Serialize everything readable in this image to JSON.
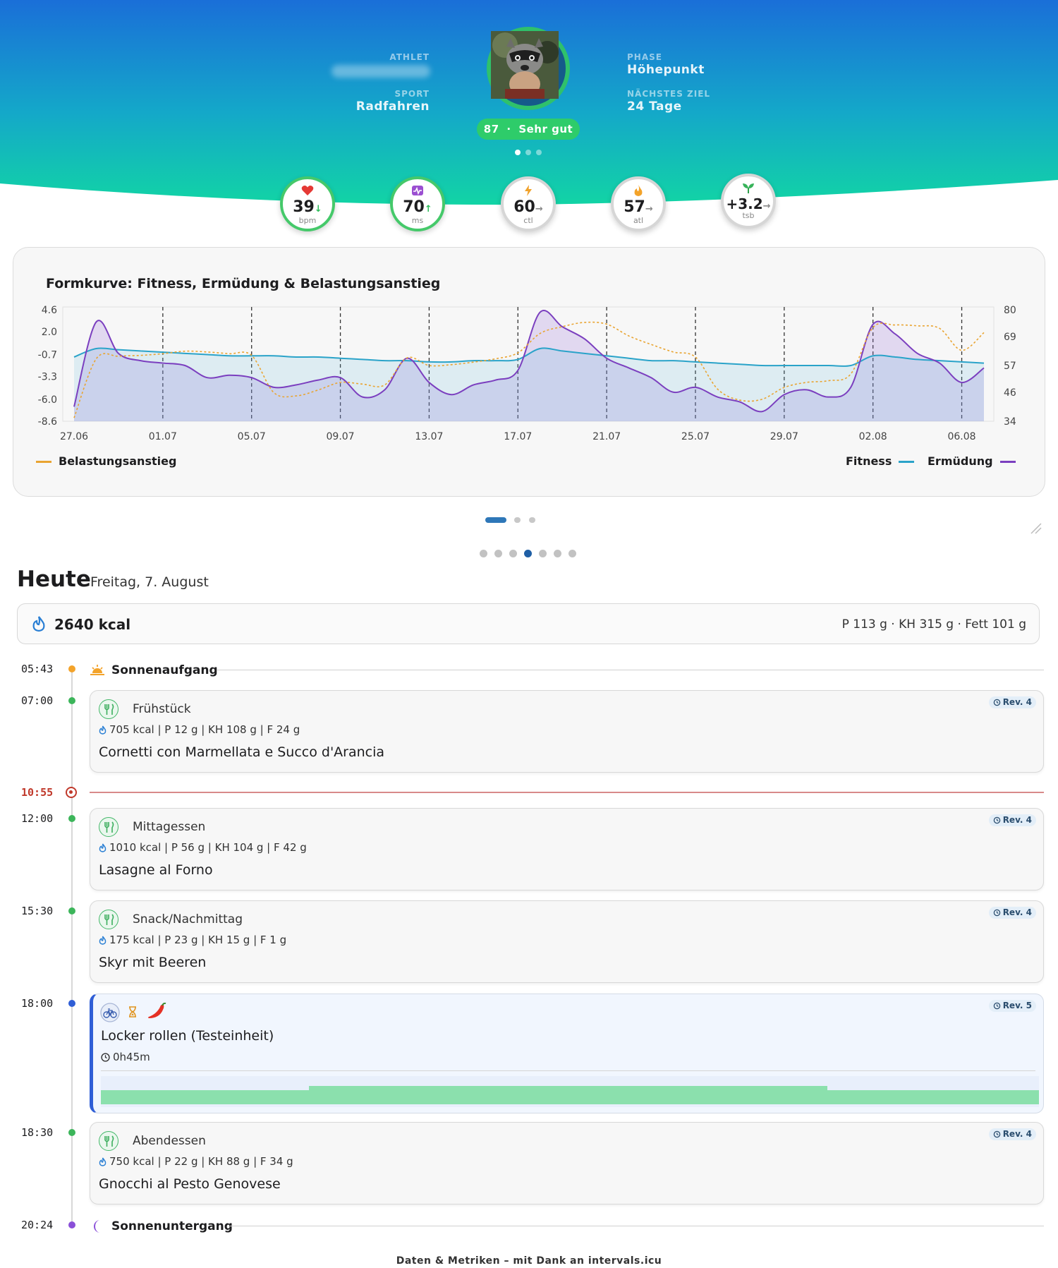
{
  "header": {
    "athlete_label": "ATHLET",
    "sport_label": "SPORT",
    "sport": "Radfahren",
    "phase_label": "PHASE",
    "phase": "Höhepunkt",
    "next_goal_label": "NÄCHSTES ZIEL",
    "next_goal": "24 Tage",
    "score": "87",
    "score_sep": "·",
    "score_text": "Sehr gut",
    "colors": {
      "gradient_top": "#1a73d6",
      "gradient_bottom": "#12cfa8",
      "score_green": "#2ecc6a"
    }
  },
  "metrics": [
    {
      "icon": "heart-icon",
      "value": "39",
      "arrow": "↓",
      "arrow_color": "#2ebd5b",
      "unit": "bpm"
    },
    {
      "icon": "hrv-icon",
      "value": "70",
      "arrow": "↑",
      "arrow_color": "#2ebd5b",
      "unit": "ms"
    },
    {
      "icon": "bolt-icon",
      "value": "60",
      "arrow": "→",
      "arrow_color": "#888888",
      "unit": "ctl"
    },
    {
      "icon": "flame-icon",
      "value": "57",
      "arrow": "→",
      "arrow_color": "#888888",
      "unit": "atl"
    },
    {
      "icon": "sprout-icon",
      "value": "+3.2",
      "arrow": "→",
      "arrow_color": "#888888",
      "unit": "tsb"
    }
  ],
  "chart": {
    "title": "Formkurve: Fitness, Ermüdung & Belastungsanstieg",
    "legend_left": "Belastungsanstieg",
    "legend_fitness": "Fitness",
    "legend_fatigue": "Ermüdung"
  },
  "chart_data": {
    "type": "line",
    "title": "Formkurve: Fitness, Ermüdung & Belastungsanstieg",
    "x_tick_labels": [
      "27.06",
      "01.07",
      "05.07",
      "09.07",
      "13.07",
      "17.07",
      "21.07",
      "25.07",
      "29.07",
      "02.08",
      "06.08"
    ],
    "y_left_ticks": [
      "4.6",
      "2.0",
      "-0.7",
      "-3.3",
      "-6.0",
      "-8.6"
    ],
    "y_left_range": [
      -8.6,
      4.6
    ],
    "y_right_ticks": [
      "80",
      "69",
      "57",
      "46",
      "34"
    ],
    "y_right_range": [
      34,
      80
    ],
    "x_dates": [
      "27.06",
      "28.06",
      "29.06",
      "30.06",
      "01.07",
      "02.07",
      "03.07",
      "04.07",
      "05.07",
      "06.07",
      "07.07",
      "08.07",
      "09.07",
      "10.07",
      "11.07",
      "12.07",
      "13.07",
      "14.07",
      "15.07",
      "16.07",
      "17.07",
      "18.07",
      "19.07",
      "20.07",
      "21.07",
      "22.07",
      "23.07",
      "24.07",
      "25.07",
      "26.07",
      "27.07",
      "28.07",
      "29.07",
      "30.07",
      "31.07",
      "01.08",
      "02.08",
      "03.08",
      "04.08",
      "05.08",
      "06.08",
      "07.08"
    ],
    "series": [
      {
        "name": "Belastungsanstieg",
        "color": "#e9a431",
        "style": "dotted",
        "axis": "left",
        "values": [
          -8.2,
          -1.2,
          -0.9,
          -0.8,
          -0.6,
          -0.3,
          -0.4,
          -0.6,
          -0.8,
          -5.2,
          -5.6,
          -4.9,
          -4.0,
          -4.2,
          -4.3,
          -1.1,
          -2.0,
          -1.9,
          -1.6,
          -1.2,
          -0.5,
          1.8,
          2.6,
          3.1,
          2.9,
          1.5,
          0.5,
          -0.4,
          -1.0,
          -4.8,
          -6.1,
          -6.0,
          -4.6,
          -4.0,
          -3.8,
          -3.0,
          2.5,
          2.8,
          2.7,
          2.4,
          -0.2,
          1.9
        ]
      },
      {
        "name": "Fitness",
        "color": "#2aa3c9",
        "style": "solid",
        "axis": "right",
        "values": [
          60.5,
          64,
          63.5,
          63,
          62.5,
          62,
          61.5,
          61,
          61,
          61,
          60.5,
          60.5,
          60,
          59.5,
          59,
          59,
          58.5,
          58.5,
          59,
          59,
          59.5,
          64,
          63,
          62,
          61,
          60,
          59,
          59,
          58.5,
          58,
          57.5,
          57,
          57,
          57,
          57,
          57,
          61,
          60.5,
          59.5,
          59,
          58.5,
          58
        ]
      },
      {
        "name": "Ermüdung",
        "color": "#7b3fbf",
        "style": "solid",
        "axis": "right",
        "values": [
          40,
          75,
          62,
          59,
          58,
          57,
          52,
          53,
          52,
          48,
          49,
          51,
          52,
          44,
          47,
          60,
          50,
          45,
          49,
          51,
          55,
          79,
          73,
          68,
          60,
          56,
          52,
          46,
          48,
          44,
          42,
          38,
          45,
          47,
          44,
          48,
          74,
          70,
          62,
          58,
          50,
          56
        ]
      }
    ],
    "legend": [
      "Belastungsanstieg",
      "Fitness",
      "Ermüdung"
    ],
    "grid": false
  },
  "today": {
    "title": "Heute",
    "date": "Freitag, 7. August",
    "kcal": "2640 kcal",
    "macros": "P 113 g · KH 315 g · Fett 101 g"
  },
  "timeline": {
    "sunrise": {
      "time": "05:43",
      "label": "Sonnenaufgang"
    },
    "now": {
      "time": "10:55"
    },
    "sunset": {
      "time": "20:24",
      "label": "Sonnenuntergang"
    },
    "meals": [
      {
        "time": "07:00",
        "category": "Frühstück",
        "macros": "705 kcal | P 12 g | KH 108 g | F 24 g",
        "name": "Cornetti con Marmellata e Succo d'Arancia",
        "rev": "Rev. 4"
      },
      {
        "time": "12:00",
        "category": "Mittagessen",
        "macros": "1010 kcal | P 56 g | KH 104 g | F 42 g",
        "name": "Lasagne al Forno",
        "rev": "Rev. 4"
      },
      {
        "time": "15:30",
        "category": "Snack/Nachmittag",
        "macros": "175 kcal | P 23 g | KH 15 g | F 1 g",
        "name": "Skyr mit Beeren",
        "rev": "Rev. 4"
      },
      {
        "time": "18:30",
        "category": "Abendessen",
        "macros": "750 kcal | P 22 g | KH 88 g | F 34 g",
        "name": "Gnocchi al Pesto Genovese",
        "rev": "Rev. 4"
      }
    ],
    "workout": {
      "time": "18:00",
      "name": "Locker rollen (Testeinheit)",
      "duration": "0h45m",
      "rev": "Rev. 5",
      "icons": [
        "bike-icon",
        "hourglass-icon",
        "chili-icon"
      ],
      "profile_color": "#8be0ad"
    }
  },
  "footer": "Daten & Metriken – mit Dank an intervals.icu"
}
